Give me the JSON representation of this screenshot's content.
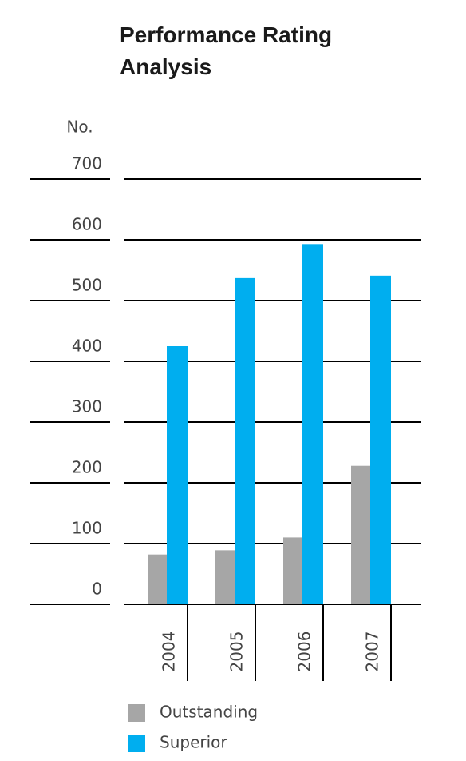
{
  "chart_data": {
    "type": "bar",
    "title": "Performance Rating Analysis",
    "y_label": "No.",
    "categories": [
      "2004",
      "2005",
      "2006",
      "2007"
    ],
    "series": [
      {
        "name": "Outstanding",
        "color": "#a6a6a6",
        "values": [
          82,
          89,
          110,
          228
        ]
      },
      {
        "name": "Superior",
        "color": "#00aeef",
        "values": [
          425,
          537,
          593,
          541
        ]
      }
    ],
    "ylim": [
      0,
      700
    ],
    "yticks": [
      0,
      100,
      200,
      300,
      400,
      500,
      600,
      700
    ],
    "grid": true
  }
}
